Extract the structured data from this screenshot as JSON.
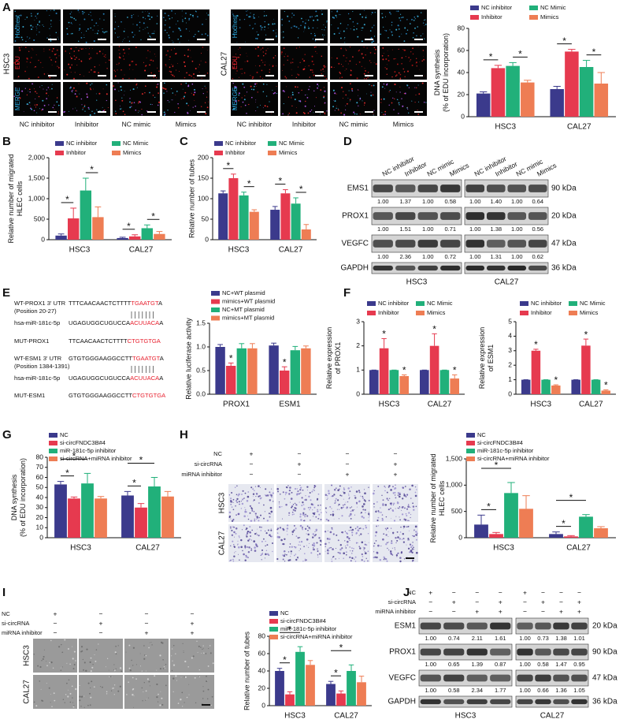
{
  "panel_labels": [
    "A",
    "B",
    "C",
    "D",
    "E",
    "F",
    "G",
    "H",
    "I",
    "J"
  ],
  "image_A": {
    "stains": [
      "Hochest",
      "EDU",
      "MERGE"
    ],
    "cell_lines": [
      "HSC3",
      "CAL27"
    ],
    "columns": [
      "NC inhibitor",
      "Inhibitor",
      "NC mimic",
      "Mimics"
    ]
  },
  "chart_data": [
    {
      "type": "bar",
      "ylabel": [
        "DNA synthesis",
        "(% of EDU incorporation)"
      ],
      "categories": [
        "HSC3",
        "CAL27"
      ],
      "ylim": [
        0,
        80
      ],
      "yticks": [
        0,
        20,
        40,
        60,
        80
      ],
      "annotations": [
        "*",
        "*",
        "*",
        "*"
      ],
      "series": [
        {
          "name": "NC inhibitor",
          "color": "#3b3a8c",
          "values": [
            21,
            25
          ],
          "errors": [
            1.5,
            2.5
          ]
        },
        {
          "name": "Inhibitor",
          "color": "#e63a4f",
          "values": [
            44,
            59
          ],
          "errors": [
            2.5,
            2
          ]
        },
        {
          "name": "NC Mimic",
          "color": "#21b07a",
          "values": [
            46,
            45
          ],
          "errors": [
            3,
            6
          ]
        },
        {
          "name": "Mimics",
          "color": "#ee7d54",
          "values": [
            31,
            30
          ],
          "errors": [
            2,
            10
          ]
        }
      ]
    },
    {
      "type": "bar",
      "ylabel": [
        "Relative number of migrated",
        "HLEC cells"
      ],
      "categories": [
        "HSC3",
        "CAL27"
      ],
      "ylim": [
        0,
        2000
      ],
      "yticks": [
        0,
        500,
        {
          "value": 1000,
          "label": "1,000"
        },
        {
          "value": 1500,
          "label": "1,500"
        },
        {
          "value": 2000,
          "label": "2,000"
        }
      ],
      "annotations": [
        "*",
        "*",
        "*",
        "*"
      ],
      "series": [
        {
          "name": "NC inhibitor",
          "color": "#3b3a8c",
          "values": [
            100,
            40
          ],
          "errors": [
            40,
            20
          ]
        },
        {
          "name": "Inhbitor",
          "color": "#e63a4f",
          "values": [
            520,
            80
          ],
          "errors": [
            250,
            40
          ]
        },
        {
          "name": "NC Mimic",
          "color": "#21b07a",
          "values": [
            1200,
            280
          ],
          "errors": [
            300,
            80
          ]
        },
        {
          "name": "Mimics",
          "color": "#ee7d54",
          "values": [
            550,
            140
          ],
          "errors": [
            250,
            60
          ]
        }
      ]
    },
    {
      "type": "bar",
      "ylabel": [
        "Relative number of tubes"
      ],
      "categories": [
        "HSC3",
        "CAL27"
      ],
      "ylim": [
        0,
        200
      ],
      "yticks": [
        0,
        50,
        100,
        150,
        200
      ],
      "annotations": [
        "*",
        "*",
        "*",
        "*"
      ],
      "series": [
        {
          "name": "NC inhibitor",
          "color": "#3b3a8c",
          "values": [
            113,
            73
          ],
          "errors": [
            6,
            8
          ]
        },
        {
          "name": "Inhbitor",
          "color": "#e63a4f",
          "values": [
            150,
            113
          ],
          "errors": [
            10,
            9
          ]
        },
        {
          "name": "NC Mimic",
          "color": "#21b07a",
          "values": [
            108,
            88
          ],
          "errors": [
            8,
            14
          ]
        },
        {
          "name": "Mimics",
          "color": "#ee7d54",
          "values": [
            68,
            25
          ],
          "errors": [
            5,
            12
          ]
        }
      ]
    },
    {
      "type": "bar",
      "ylabel": [
        "Relative luciferase activity"
      ],
      "categories": [
        "PROX1",
        "ESM1"
      ],
      "ylim": [
        0,
        1.5
      ],
      "yticks": [
        {
          "value": 0,
          "label": "0.0"
        },
        0.5,
        {
          "value": 1,
          "label": "1.0"
        },
        1.5
      ],
      "annotations": [
        "*",
        "*"
      ],
      "series": [
        {
          "name": "NC+WT plasmid",
          "color": "#3b3a8c",
          "values": [
            1.0,
            1.03
          ],
          "errors": [
            0.05,
            0.05
          ]
        },
        {
          "name": "mimics+WT plasmid",
          "color": "#e63a4f",
          "values": [
            0.6,
            0.5
          ],
          "errors": [
            0.06,
            0.08
          ]
        },
        {
          "name": "NC+MT plasmid",
          "color": "#21b07a",
          "values": [
            0.97,
            0.93
          ],
          "errors": [
            0.1,
            0.08
          ]
        },
        {
          "name": "mimics+MT plasmid",
          "color": "#ee7d54",
          "values": [
            0.97,
            0.97
          ],
          "errors": [
            0.1,
            0.05
          ]
        }
      ]
    },
    {
      "type": "bar",
      "ylabel": [
        "Relative expression",
        "of PROX1"
      ],
      "categories": [
        "HSC3",
        "CAL27"
      ],
      "ylim": [
        0,
        3
      ],
      "yticks": [
        0,
        1,
        2,
        3
      ],
      "annotations": [
        "*",
        "*",
        "*",
        "*"
      ],
      "series": [
        {
          "name": "NC inhibitor",
          "color": "#3b3a8c",
          "values": [
            1,
            1
          ],
          "errors": [
            0,
            0
          ]
        },
        {
          "name": "Inhibitor",
          "color": "#e63a4f",
          "values": [
            1.9,
            2.0
          ],
          "errors": [
            0.4,
            0.5
          ]
        },
        {
          "name": "NC Mimic",
          "color": "#21b07a",
          "values": [
            1,
            1
          ],
          "errors": [
            0,
            0
          ]
        },
        {
          "name": "Mimics",
          "color": "#ee7d54",
          "values": [
            0.75,
            0.65
          ],
          "errors": [
            0.05,
            0.15
          ]
        }
      ]
    },
    {
      "type": "bar",
      "ylabel": [
        "Relative expression",
        "of ESM1"
      ],
      "categories": [
        "HSC3",
        "CAL27"
      ],
      "ylim": [
        0,
        5
      ],
      "yticks": [
        0,
        1,
        2,
        3,
        4,
        5
      ],
      "annotations": [
        "*",
        "*",
        "*",
        "*"
      ],
      "series": [
        {
          "name": "NC inhibitor",
          "color": "#3b3a8c",
          "values": [
            1,
            1
          ],
          "errors": [
            0,
            0
          ]
        },
        {
          "name": "Inhibitor",
          "color": "#e63a4f",
          "values": [
            3.0,
            3.35
          ],
          "errors": [
            0.1,
            0.45
          ]
        },
        {
          "name": "NC Mimic",
          "color": "#21b07a",
          "values": [
            1,
            1
          ],
          "errors": [
            0,
            0
          ]
        },
        {
          "name": "Mimics",
          "color": "#ee7d54",
          "values": [
            0.6,
            0.25
          ],
          "errors": [
            0.05,
            0.05
          ]
        }
      ]
    },
    {
      "type": "bar",
      "ylabel": [
        "DNA synthesis",
        "(% of EDU incorporation)"
      ],
      "categories": [
        "HSC3",
        "CAL27"
      ],
      "ylim": [
        0,
        80
      ],
      "yticks": [
        0,
        10,
        20,
        30,
        40,
        50,
        60,
        70,
        80
      ],
      "annotations": [
        "*",
        "*",
        "*",
        "*"
      ],
      "series": [
        {
          "name": "NC",
          "color": "#3b3a8c",
          "values": [
            53,
            42
          ],
          "errors": [
            3,
            4
          ]
        },
        {
          "name": "si-circFNDC3B#4",
          "color": "#e63a4f",
          "values": [
            39,
            30
          ],
          "errors": [
            1.5,
            4
          ]
        },
        {
          "name": "miR-181c-5p inhibitor",
          "color": "#21b07a",
          "values": [
            54,
            51
          ],
          "errors": [
            10,
            9
          ]
        },
        {
          "name": "si-circRNA+miRNA inhibitor",
          "color": "#ee7d54",
          "values": [
            39,
            41
          ],
          "errors": [
            2,
            5
          ]
        }
      ]
    },
    {
      "type": "bar",
      "ylabel": [
        "Relative number of migrated",
        "HLEC cells"
      ],
      "categories": [
        "HSC3",
        "CAL27"
      ],
      "ylim": [
        0,
        1500
      ],
      "yticks": [
        0,
        500,
        {
          "value": 1000,
          "label": "1,000"
        },
        {
          "value": 1500,
          "label": "1,500"
        }
      ],
      "annotations": [
        "*",
        "*",
        "*",
        "*"
      ],
      "series": [
        {
          "name": "NC",
          "color": "#3b3a8c",
          "values": [
            250,
            70
          ],
          "errors": [
            180,
            40
          ]
        },
        {
          "name": "si-circFNDC3B#4",
          "color": "#e63a4f",
          "values": [
            70,
            25
          ],
          "errors": [
            30,
            15
          ]
        },
        {
          "name": "miR-181c-5p inhibitor",
          "color": "#21b07a",
          "values": [
            850,
            400
          ],
          "errors": [
            200,
            40
          ]
        },
        {
          "name": "si-circRNA+miRNA inhibitor",
          "color": "#ee7d54",
          "values": [
            550,
            180
          ],
          "errors": [
            250,
            30
          ]
        }
      ]
    },
    {
      "type": "bar",
      "ylabel": [
        "Relative number of tubes"
      ],
      "categories": [
        "HSC3",
        "CAL27"
      ],
      "ylim": [
        0,
        80
      ],
      "yticks": [
        0,
        20,
        40,
        60,
        80
      ],
      "annotations": [
        "*",
        "*",
        "*",
        "*"
      ],
      "series": [
        {
          "name": "NC",
          "color": "#3b3a8c",
          "values": [
            40,
            25
          ],
          "errors": [
            3,
            3
          ]
        },
        {
          "name": "si-circFNDC3B#4",
          "color": "#e63a4f",
          "values": [
            13,
            14
          ],
          "errors": [
            3,
            3
          ]
        },
        {
          "name": "miR-181c-5p inhibitor",
          "color": "#21b07a",
          "values": [
            62,
            40
          ],
          "errors": [
            6,
            7
          ]
        },
        {
          "name": "si-circRNA+miRNA inhibitor",
          "color": "#ee7d54",
          "values": [
            47,
            27
          ],
          "errors": [
            5,
            7
          ]
        }
      ]
    }
  ],
  "sequences_E": [
    {
      "name": "WT-PROX1 3' UTR",
      "pre": "TTTCAACAACTCTTTT",
      "hl": "TGAATGT",
      "post": "A",
      "note": "(Position 20-27)"
    },
    {
      "name": "hsa-miR-181c-5p",
      "pre": "UGAGUGGCUGUCCA",
      "hl": "ACUUACA",
      "post": "A"
    },
    {
      "name": "MUT-PROX1",
      "pre": "TTCAACAACTCTTTT",
      "hl": "CTGTGTGA"
    },
    {
      "name": "WT-ESM1 3' UTR",
      "pre": "GTGTGGGAAGGCCTT",
      "hl": "TGAATGT",
      "post": "A",
      "note": "(Position 1384-1391)"
    },
    {
      "name": "hsa-miR-181c-5p",
      "pre": "UGAGUGGCUGUCCA",
      "hl": "ACUUACA",
      "post": "A"
    },
    {
      "name": "MUT-ESM1",
      "pre": "GTGTGGGAAGGCCTT",
      "hl": "CTGTGTGA"
    }
  ],
  "blot_D": {
    "lanes": [
      "NC inhibitor",
      "Inhibitor",
      "NC mimic",
      "Mimics"
    ],
    "cell_lines": [
      "HSC3",
      "CAL27"
    ],
    "rows": [
      {
        "protein": "EMS1",
        "kda": "90 kDa",
        "ratios": [
          [
            "1.00",
            "1.37",
            "1.00",
            "0.58"
          ],
          [
            "1.00",
            "1.40",
            "1.00",
            "0.64"
          ]
        ]
      },
      {
        "protein": "PROX1",
        "kda": "20 kDa",
        "ratios": [
          [
            "1.00",
            "1.51",
            "1.00",
            "0.71"
          ],
          [
            "1.00",
            "1.38",
            "1.00",
            "0.56"
          ]
        ]
      },
      {
        "protein": "VEGFC",
        "kda": "47 kDa",
        "ratios": [
          [
            "1.00",
            "2.36",
            "1.00",
            "0.72"
          ],
          [
            "1.00",
            "1.31",
            "1.00",
            "0.62"
          ]
        ]
      }
    ],
    "loading": {
      "protein": "GAPDH",
      "kda": "36 kDa"
    }
  },
  "conditions_H": {
    "cell_lines": [
      "HSC3",
      "CAL27"
    ],
    "rows": [
      {
        "name": "NC",
        "signs": [
          "+",
          "−",
          "−",
          "−"
        ]
      },
      {
        "name": "si-circRNA",
        "signs": [
          "−",
          "+",
          "−",
          "+"
        ]
      },
      {
        "name": "miRNA inhibitor",
        "signs": [
          "−",
          "−",
          "+",
          "+"
        ]
      }
    ]
  },
  "conditions_I": {
    "cell_lines": [
      "HSC3",
      "CAL27"
    ],
    "rows": [
      {
        "name": "NC",
        "signs": [
          "+",
          "−",
          "−",
          "−"
        ]
      },
      {
        "name": "si-circRNA",
        "signs": [
          "−",
          "+",
          "−",
          "+"
        ]
      },
      {
        "name": "miRNA inhibitor",
        "signs": [
          "−",
          "−",
          "+",
          "+"
        ]
      }
    ]
  },
  "blot_J": {
    "cell_lines": [
      "HSC3",
      "CAL27"
    ],
    "conditions": [
      {
        "name": "NC",
        "signs": [
          "+",
          "−",
          "−",
          "−"
        ]
      },
      {
        "name": "si-circRNA",
        "signs": [
          "−",
          "+",
          "−",
          "+"
        ]
      },
      {
        "name": "miRNA inhibitor",
        "signs": [
          "−",
          "−",
          "+",
          "+"
        ]
      }
    ],
    "rows": [
      {
        "protein": "ESM1",
        "kda": "20 kDa",
        "ratios": [
          [
            "1.00",
            "0.74",
            "2.11",
            "1.61"
          ],
          [
            "1.00",
            "0.73",
            "1.38",
            "1.01"
          ]
        ]
      },
      {
        "protein": "PROX1",
        "kda": "90 kDa",
        "ratios": [
          [
            "1.00",
            "0.65",
            "1.39",
            "0.87"
          ],
          [
            "1.00",
            "0.58",
            "1.47",
            "0.95"
          ]
        ]
      },
      {
        "protein": "VEGFC",
        "kda": "47 kDa",
        "ratios": [
          [
            "1.00",
            "0.58",
            "2.34",
            "1.77"
          ],
          [
            "1.00",
            "0.66",
            "1.36",
            "1.05"
          ]
        ]
      }
    ],
    "loading": {
      "protein": "GAPDH",
      "kda": "36 kDa"
    }
  }
}
